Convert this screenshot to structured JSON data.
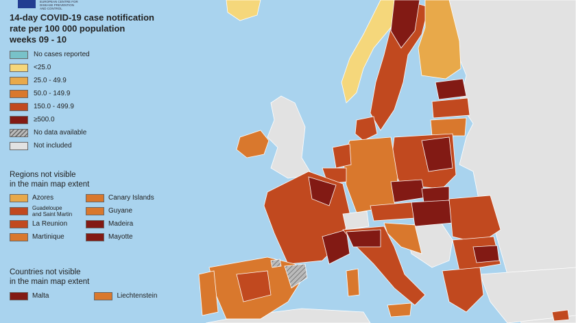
{
  "title": {
    "line1": "14-day COVID-19 case notification",
    "line2": "rate per 100 000 population",
    "line3": "weeks 09 - 10"
  },
  "logo": {
    "text": "EUROPEAN CENTRE FOR\nDISEASE PREVENTION\nAND CONTROL"
  },
  "legend": [
    {
      "label": "No cases reported",
      "color": "#78c2c9"
    },
    {
      "label": "<25.0",
      "color": "#f5d77b"
    },
    {
      "label": "25.0 - 49.9",
      "color": "#e8a94a"
    },
    {
      "label": "50.0 - 149.9",
      "color": "#d9782d"
    },
    {
      "label": "150.0 - 499.9",
      "color": "#c1491f"
    },
    {
      "label": "≥500.0",
      "color": "#821a14"
    },
    {
      "label": "No data available",
      "color": "hatch"
    },
    {
      "label": "Not included",
      "color": "#e2e2e2"
    }
  ],
  "regions": {
    "title_line1": "Regions not visible",
    "title_line2": "in the main map extent",
    "left": [
      {
        "label": "Azores",
        "color": "#e8a94a"
      },
      {
        "label": "Guadeloupe\nand Saint Martin",
        "color": "#c1491f"
      },
      {
        "label": "La Reunion",
        "color": "#c1491f"
      },
      {
        "label": "Martinique",
        "color": "#d9782d"
      }
    ],
    "right": [
      {
        "label": "Canary Islands",
        "color": "#d9782d"
      },
      {
        "label": "Guyane",
        "color": "#d9782d"
      },
      {
        "label": "Madeira",
        "color": "#821a14"
      },
      {
        "label": "Mayotte",
        "color": "#821a14"
      }
    ]
  },
  "countries": {
    "title_line1": "Countries not visible",
    "title_line2": "in the main map extent",
    "items": [
      {
        "label": "Malta",
        "color": "#821a14"
      },
      {
        "label": "Liechtenstein",
        "color": "#d9782d"
      }
    ]
  },
  "colors": {
    "sea": "#a9d3ee",
    "not_included": "#e2e2e2",
    "very_high": "#821a14",
    "high": "#c1491f",
    "medium": "#d9782d",
    "low": "#e8a94a",
    "very_low": "#f5d77b"
  }
}
